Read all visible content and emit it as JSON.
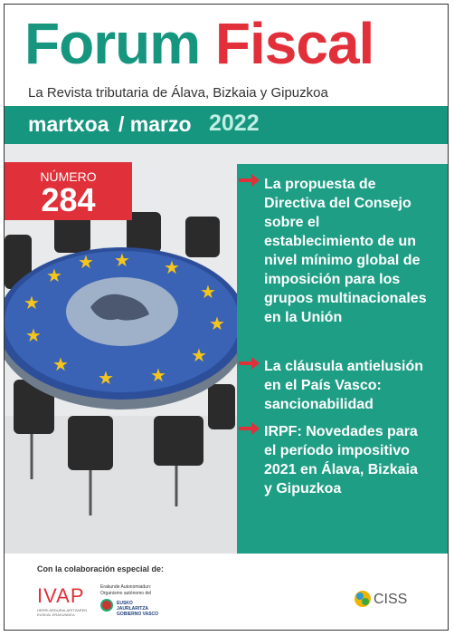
{
  "header": {
    "title_part1": "Forum",
    "title_part2": "Fiscal",
    "subtitle": "La Revista tributaria de Álava, Bizkaia y Gipuzkoa"
  },
  "issue": {
    "month_eu": "martxoa",
    "month_es": "/ marzo",
    "year": "2022",
    "number_label": "NÚMERO",
    "number": "284"
  },
  "articles": [
    "La propuesta de Directiva del Consejo sobre el establecimiento de un nivel mínimo global de imposición para los grupos multinacionales en la Unión",
    "La cláusula antielusión en el País Vasco: sancionabilidad",
    "IRPF: Novedades para el período impositivo 2021 en Álava, Bizkaia y Gipuzkoa"
  ],
  "footer": {
    "collaboration": "Con la colaboración especial de:",
    "ivap": "IVAP",
    "ivap_sub": "HERRI ARDURALARITZAREN EUSKAL ERAKUNDEA",
    "gov_line1": "Erakunde Autonomiadun:",
    "gov_line2": "Organismo autónomo del",
    "gov_name": "EUSKO JAURLARITZA GOBIERNO VASCO",
    "ciss": "CISS"
  }
}
